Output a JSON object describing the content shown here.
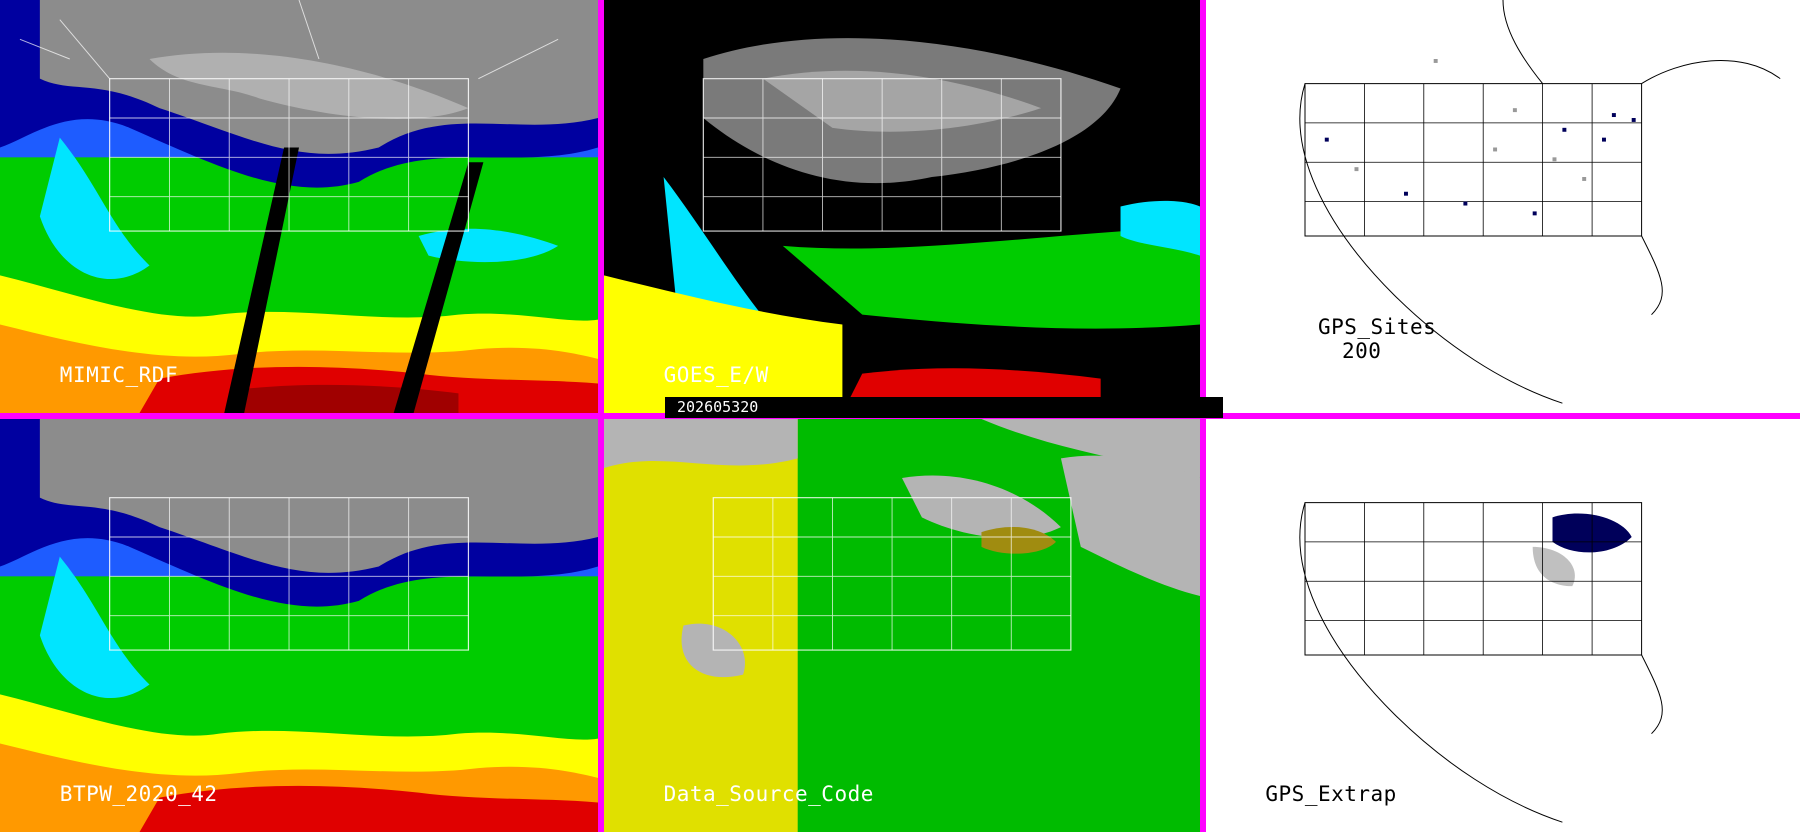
{
  "timestamp": "202605320",
  "panels": [
    {
      "id": "mimic",
      "label": "MIMIC_RDF",
      "style": "satellite",
      "has_swath_gaps": true
    },
    {
      "id": "goes",
      "label": "GOES_E/W",
      "style": "satellite-sparse"
    },
    {
      "id": "gps_sites",
      "label": "GPS_Sites",
      "count": "200",
      "style": "sites"
    },
    {
      "id": "btpw",
      "label": "BTPW_2020_42",
      "style": "satellite"
    },
    {
      "id": "source",
      "label": "Data_Source_Code",
      "style": "source-code"
    },
    {
      "id": "gps_extrap",
      "label": "GPS_Extrap",
      "style": "extrap"
    }
  ],
  "colors": {
    "border": "#ff00ff",
    "palette": [
      "#808080",
      "#b0b0b0",
      "#0000a0",
      "#1e5cff",
      "#00e5ff",
      "#00cc00",
      "#7ee000",
      "#ffff00",
      "#ff9900",
      "#e00000",
      "#a00000"
    ],
    "source_yellow": "#e0e000",
    "source_green": "#00bb00",
    "source_gray": "#b4b4b4",
    "source_olive": "#a08c10",
    "site_navy": "#00005a",
    "site_gray": "#999999"
  }
}
